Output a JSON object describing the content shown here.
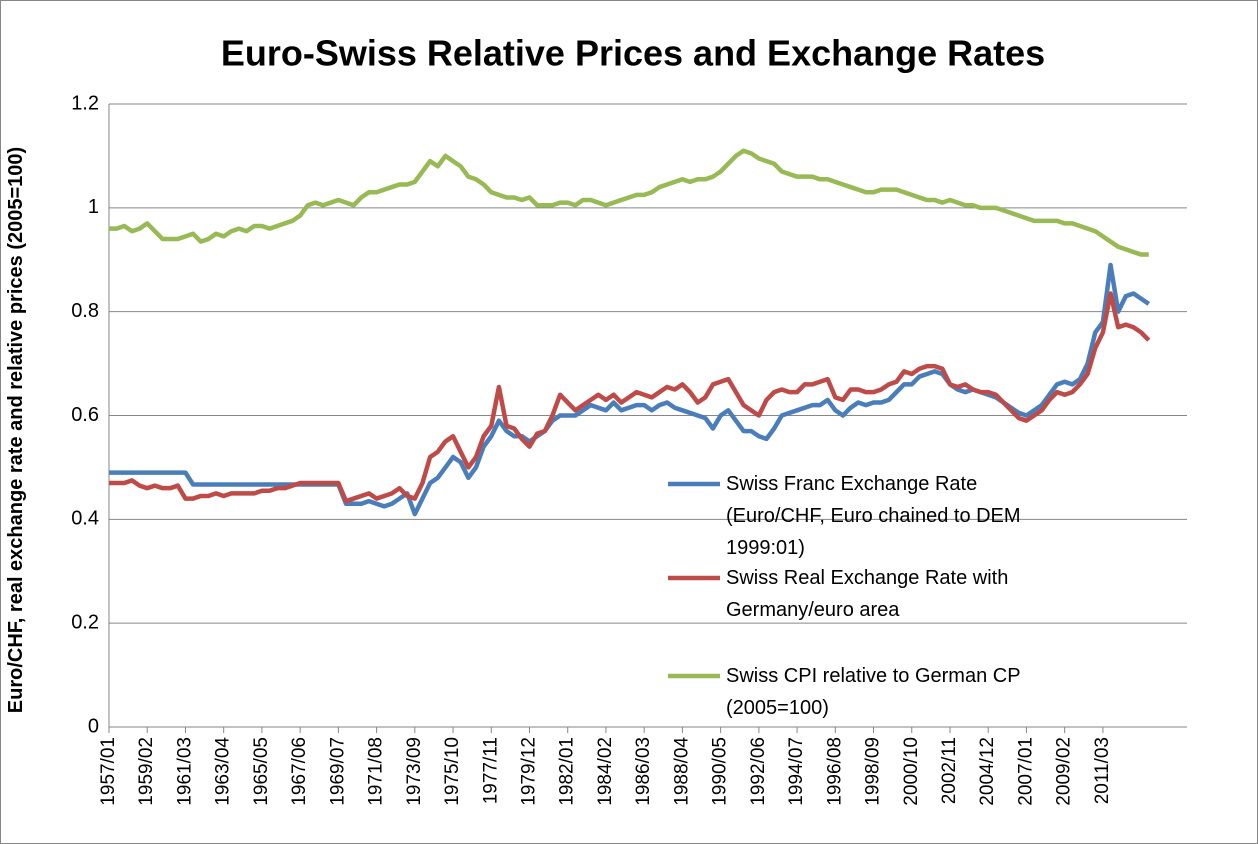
{
  "chart_data": {
    "type": "line",
    "title": "Euro-Swiss Relative Prices and Exchange Rates",
    "y_label": "Euro/CHF, real exchange rate and relative prices (2005=100)",
    "categories": [
      "1957/01",
      null,
      null,
      null,
      null,
      "1959/02",
      null,
      null,
      null,
      null,
      "1961/03",
      null,
      null,
      null,
      null,
      "1963/04",
      null,
      null,
      null,
      null,
      "1965/05",
      null,
      null,
      null,
      null,
      "1967/06",
      null,
      null,
      null,
      null,
      "1969/07",
      null,
      null,
      null,
      null,
      "1971/08",
      null,
      null,
      null,
      null,
      "1973/09",
      null,
      null,
      null,
      null,
      "1975/10",
      null,
      null,
      null,
      null,
      "1977/11",
      null,
      null,
      null,
      null,
      "1979/12",
      null,
      null,
      null,
      null,
      "1982/01",
      null,
      null,
      null,
      null,
      "1984/02",
      null,
      null,
      null,
      null,
      "1986/03",
      null,
      null,
      null,
      null,
      "1988/04",
      null,
      null,
      null,
      null,
      "1990/05",
      null,
      null,
      null,
      null,
      "1992/06",
      null,
      null,
      null,
      null,
      "1994/07",
      null,
      null,
      null,
      null,
      "1996/08",
      null,
      null,
      null,
      null,
      "1998/09",
      null,
      null,
      null,
      null,
      "2000/10",
      null,
      null,
      null,
      null,
      "2002/11",
      null,
      null,
      null,
      null,
      "2004/12",
      null,
      null,
      null,
      null,
      "2007/01",
      null,
      null,
      null,
      null,
      "2009/02",
      null,
      null,
      null,
      null,
      "2011/03",
      null,
      null,
      null,
      null,
      null,
      null
    ],
    "series": [
      {
        "name": "Swiss Franc Exchange Rate (Euro/CHF, Euro chained to DEM 1999:01)",
        "color": "#4a7ebb",
        "values": [
          0.49,
          0.49,
          0.49,
          0.49,
          0.49,
          0.49,
          0.49,
          0.49,
          0.49,
          0.49,
          0.49,
          0.467,
          0.467,
          0.467,
          0.467,
          0.467,
          0.467,
          0.467,
          0.467,
          0.467,
          0.467,
          0.467,
          0.467,
          0.467,
          0.467,
          0.467,
          0.467,
          0.467,
          0.467,
          0.467,
          0.467,
          0.43,
          0.43,
          0.43,
          0.435,
          0.43,
          0.425,
          0.43,
          0.44,
          0.45,
          0.41,
          0.44,
          0.47,
          0.48,
          0.5,
          0.52,
          0.51,
          0.48,
          0.5,
          0.54,
          0.56,
          0.59,
          0.57,
          0.56,
          0.56,
          0.55,
          0.56,
          0.57,
          0.59,
          0.6,
          0.6,
          0.6,
          0.61,
          0.62,
          0.615,
          0.61,
          0.625,
          0.61,
          0.615,
          0.62,
          0.62,
          0.61,
          0.62,
          0.625,
          0.615,
          0.61,
          0.605,
          0.6,
          0.595,
          0.575,
          0.6,
          0.61,
          0.59,
          0.57,
          0.57,
          0.56,
          0.555,
          0.575,
          0.6,
          0.605,
          0.61,
          0.615,
          0.62,
          0.62,
          0.63,
          0.61,
          0.6,
          0.615,
          0.625,
          0.62,
          0.625,
          0.625,
          0.63,
          0.645,
          0.66,
          0.66,
          0.675,
          0.68,
          0.685,
          0.68,
          0.66,
          0.65,
          0.645,
          0.65,
          0.645,
          0.64,
          0.635,
          0.625,
          0.615,
          0.605,
          0.6,
          0.61,
          0.62,
          0.64,
          0.66,
          0.665,
          0.66,
          0.67,
          0.7,
          0.76,
          0.78,
          0.89,
          0.8,
          0.83,
          0.835,
          0.825,
          0.815
        ]
      },
      {
        "name": "Swiss Real Exchange Rate with Germany/euro area",
        "color": "#be4b48",
        "values": [
          0.47,
          0.47,
          0.47,
          0.475,
          0.465,
          0.46,
          0.465,
          0.46,
          0.46,
          0.465,
          0.44,
          0.44,
          0.445,
          0.445,
          0.45,
          0.445,
          0.45,
          0.45,
          0.45,
          0.45,
          0.455,
          0.455,
          0.46,
          0.46,
          0.465,
          0.47,
          0.47,
          0.47,
          0.47,
          0.47,
          0.47,
          0.435,
          0.44,
          0.445,
          0.45,
          0.44,
          0.445,
          0.45,
          0.46,
          0.445,
          0.44,
          0.47,
          0.52,
          0.53,
          0.55,
          0.56,
          0.53,
          0.5,
          0.52,
          0.56,
          0.58,
          0.655,
          0.58,
          0.575,
          0.555,
          0.54,
          0.565,
          0.57,
          0.6,
          0.64,
          0.625,
          0.61,
          0.62,
          0.63,
          0.64,
          0.63,
          0.64,
          0.625,
          0.635,
          0.645,
          0.64,
          0.635,
          0.645,
          0.655,
          0.65,
          0.66,
          0.645,
          0.625,
          0.635,
          0.66,
          0.665,
          0.67,
          0.645,
          0.62,
          0.61,
          0.6,
          0.63,
          0.645,
          0.65,
          0.645,
          0.645,
          0.66,
          0.66,
          0.665,
          0.67,
          0.635,
          0.63,
          0.65,
          0.65,
          0.645,
          0.645,
          0.65,
          0.66,
          0.665,
          0.685,
          0.68,
          0.69,
          0.695,
          0.695,
          0.69,
          0.66,
          0.655,
          0.66,
          0.65,
          0.645,
          0.645,
          0.64,
          0.625,
          0.61,
          0.595,
          0.59,
          0.6,
          0.61,
          0.63,
          0.645,
          0.64,
          0.645,
          0.66,
          0.68,
          0.73,
          0.76,
          0.835,
          0.77,
          0.775,
          0.77,
          0.76,
          0.745
        ]
      },
      {
        "name": "Swiss CPI relative to German CP (2005=100)",
        "color": "#98b954",
        "values": [
          0.96,
          0.96,
          0.965,
          0.955,
          0.96,
          0.97,
          0.955,
          0.94,
          0.94,
          0.94,
          0.945,
          0.95,
          0.935,
          0.94,
          0.95,
          0.945,
          0.955,
          0.96,
          0.955,
          0.965,
          0.965,
          0.96,
          0.965,
          0.97,
          0.975,
          0.985,
          1.005,
          1.01,
          1.005,
          1.01,
          1.015,
          1.01,
          1.005,
          1.02,
          1.03,
          1.03,
          1.035,
          1.04,
          1.045,
          1.045,
          1.05,
          1.07,
          1.09,
          1.08,
          1.1,
          1.09,
          1.08,
          1.06,
          1.055,
          1.045,
          1.03,
          1.025,
          1.02,
          1.02,
          1.015,
          1.02,
          1.005,
          1.005,
          1.005,
          1.01,
          1.01,
          1.005,
          1.015,
          1.015,
          1.01,
          1.005,
          1.01,
          1.015,
          1.02,
          1.025,
          1.025,
          1.03,
          1.04,
          1.045,
          1.05,
          1.055,
          1.05,
          1.055,
          1.055,
          1.06,
          1.07,
          1.085,
          1.1,
          1.11,
          1.105,
          1.095,
          1.09,
          1.085,
          1.07,
          1.065,
          1.06,
          1.06,
          1.06,
          1.055,
          1.055,
          1.05,
          1.045,
          1.04,
          1.035,
          1.03,
          1.03,
          1.035,
          1.035,
          1.035,
          1.03,
          1.025,
          1.02,
          1.015,
          1.015,
          1.01,
          1.015,
          1.01,
          1.005,
          1.005,
          1.0,
          1.0,
          1.0,
          0.995,
          0.99,
          0.985,
          0.98,
          0.975,
          0.975,
          0.975,
          0.975,
          0.97,
          0.97,
          0.965,
          0.96,
          0.955,
          0.945,
          0.935,
          0.925,
          0.92,
          0.915,
          0.91,
          0.91
        ]
      }
    ],
    "ylim": [
      0,
      1.2
    ],
    "yticks": [
      0,
      0.2,
      0.4,
      0.6,
      0.8,
      1,
      1.2
    ],
    "grid": true
  }
}
